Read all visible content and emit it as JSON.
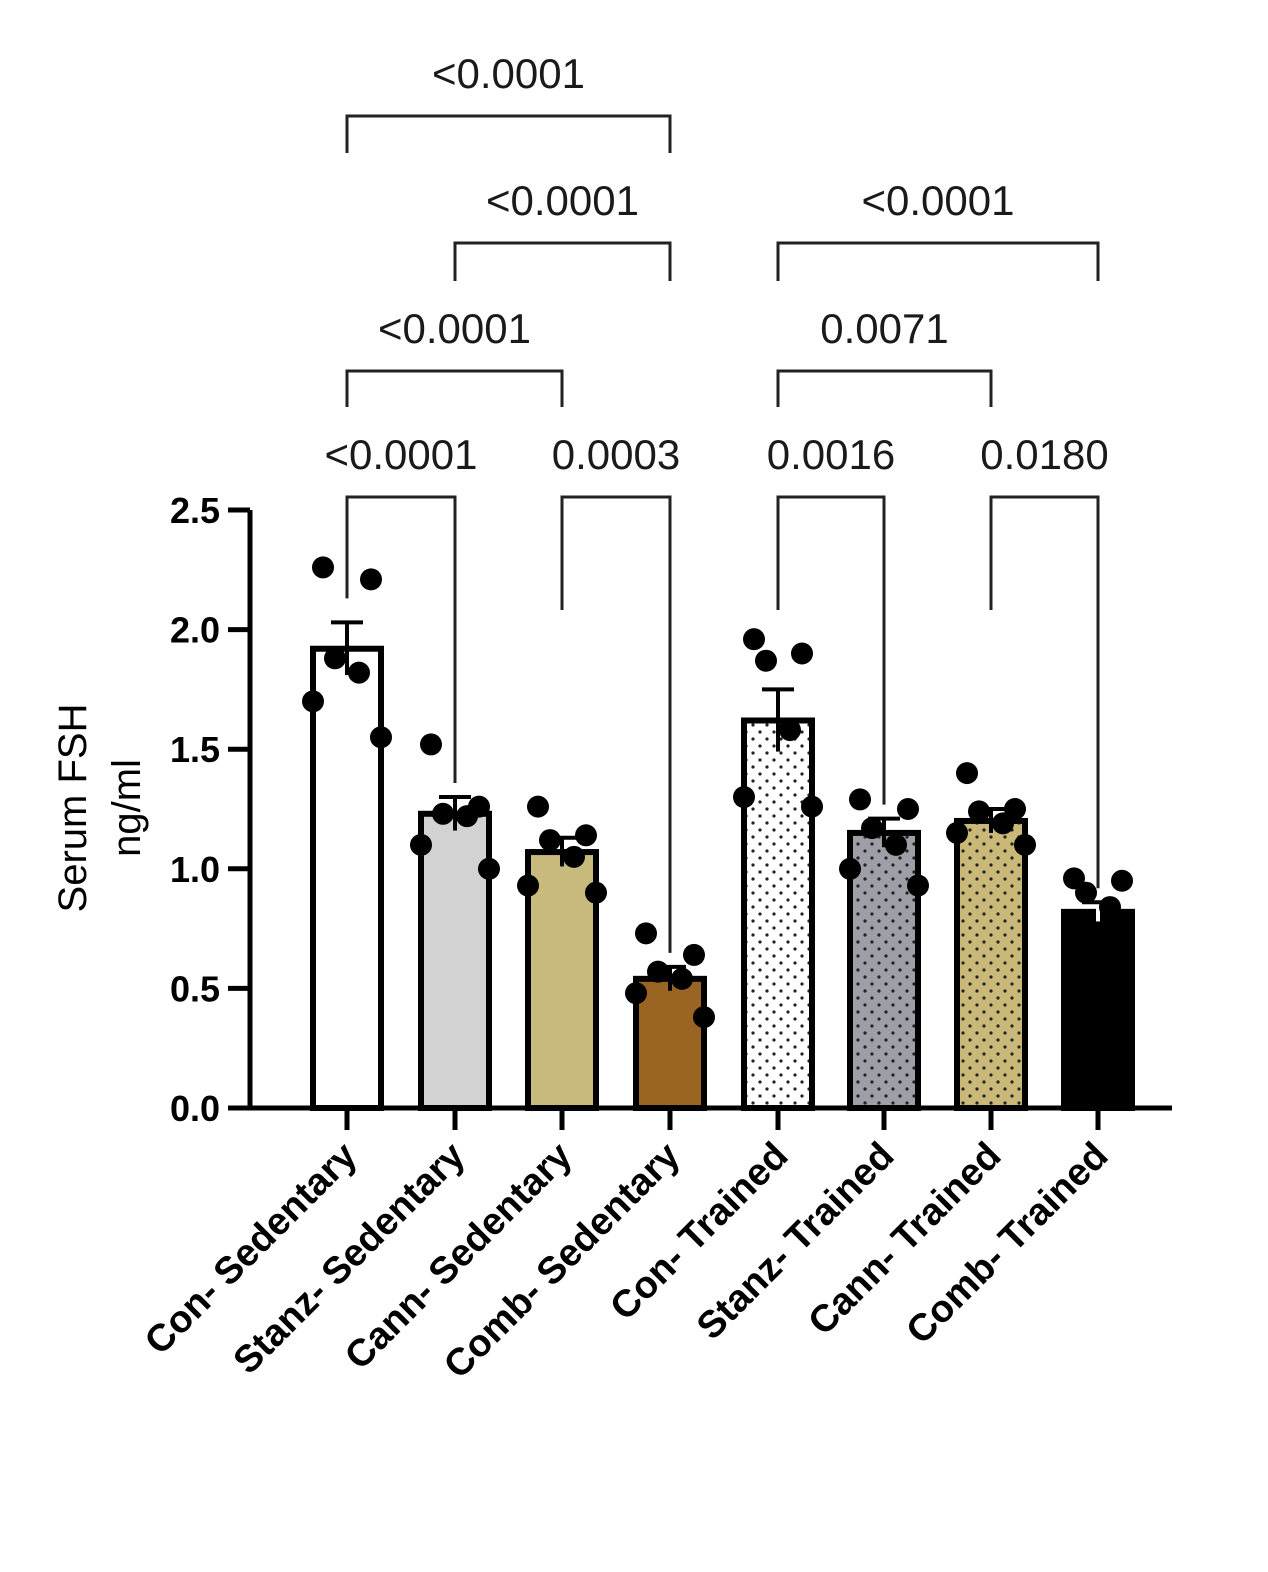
{
  "chart_data": {
    "type": "bar",
    "ylabel_line1": "Serum FSH",
    "ylabel_line2": "ng/ml",
    "ylim": [
      0,
      2.5
    ],
    "yticks": [
      "0.0",
      "0.5",
      "1.0",
      "1.5",
      "2.0",
      "2.5"
    ],
    "ytick_values": [
      0,
      0.5,
      1.0,
      1.5,
      2.0,
      2.5
    ],
    "categories": [
      "Con- Sedentary",
      "Stanz- Sedentary",
      "Cann- Sedentary",
      "Comb- Sedentary",
      "Con- Trained",
      "Stanz- Trained",
      "Cann- Trained",
      "Comb- Trained"
    ],
    "means": [
      1.92,
      1.23,
      1.07,
      0.54,
      1.62,
      1.15,
      1.2,
      0.82
    ],
    "sem": [
      0.11,
      0.07,
      0.06,
      0.05,
      0.13,
      0.06,
      0.05,
      0.04
    ],
    "points": [
      [
        2.26,
        2.21,
        1.88,
        1.82,
        1.7,
        1.55
      ],
      [
        1.52,
        1.26,
        1.23,
        1.22,
        1.1,
        1.0
      ],
      [
        1.26,
        1.14,
        1.12,
        1.05,
        0.93,
        0.9
      ],
      [
        0.73,
        0.64,
        0.57,
        0.54,
        0.48,
        0.38
      ],
      [
        1.96,
        1.9,
        1.87,
        1.58,
        1.3,
        1.26
      ],
      [
        1.29,
        1.25,
        1.17,
        1.1,
        1.0,
        0.93
      ],
      [
        1.4,
        1.25,
        1.24,
        1.19,
        1.15,
        1.1
      ],
      [
        0.96,
        0.95,
        0.9,
        0.84
      ]
    ],
    "bar_colors": [
      "#ffffff",
      "#d2d2d2",
      "#c8b97c",
      "#9a6522",
      "#ffffff",
      "#9e9ea6",
      "#c9b877",
      "#000000"
    ],
    "bar_patterns": [
      "none",
      "none",
      "none",
      "none",
      "dots-dark",
      "dots-dark",
      "dots-dark",
      "none"
    ],
    "comparisons": [
      {
        "from": 0,
        "to": 1,
        "label": "<0.0001",
        "level": 0
      },
      {
        "from": 2,
        "to": 3,
        "label": "0.0003",
        "level": 0
      },
      {
        "from": 4,
        "to": 5,
        "label": "0.0016",
        "level": 0
      },
      {
        "from": 6,
        "to": 7,
        "label": "0.0180",
        "level": 0
      },
      {
        "from": 0,
        "to": 2,
        "label": "<0.0001",
        "level": 1
      },
      {
        "from": 4,
        "to": 6,
        "label": "0.0071",
        "level": 1
      },
      {
        "from": 1,
        "to": 3,
        "label": "<0.0001",
        "level": 2
      },
      {
        "from": 4,
        "to": 7,
        "label": "<0.0001",
        "level": 2
      },
      {
        "from": 0,
        "to": 3,
        "label": "<0.0001",
        "level": 3
      }
    ]
  }
}
